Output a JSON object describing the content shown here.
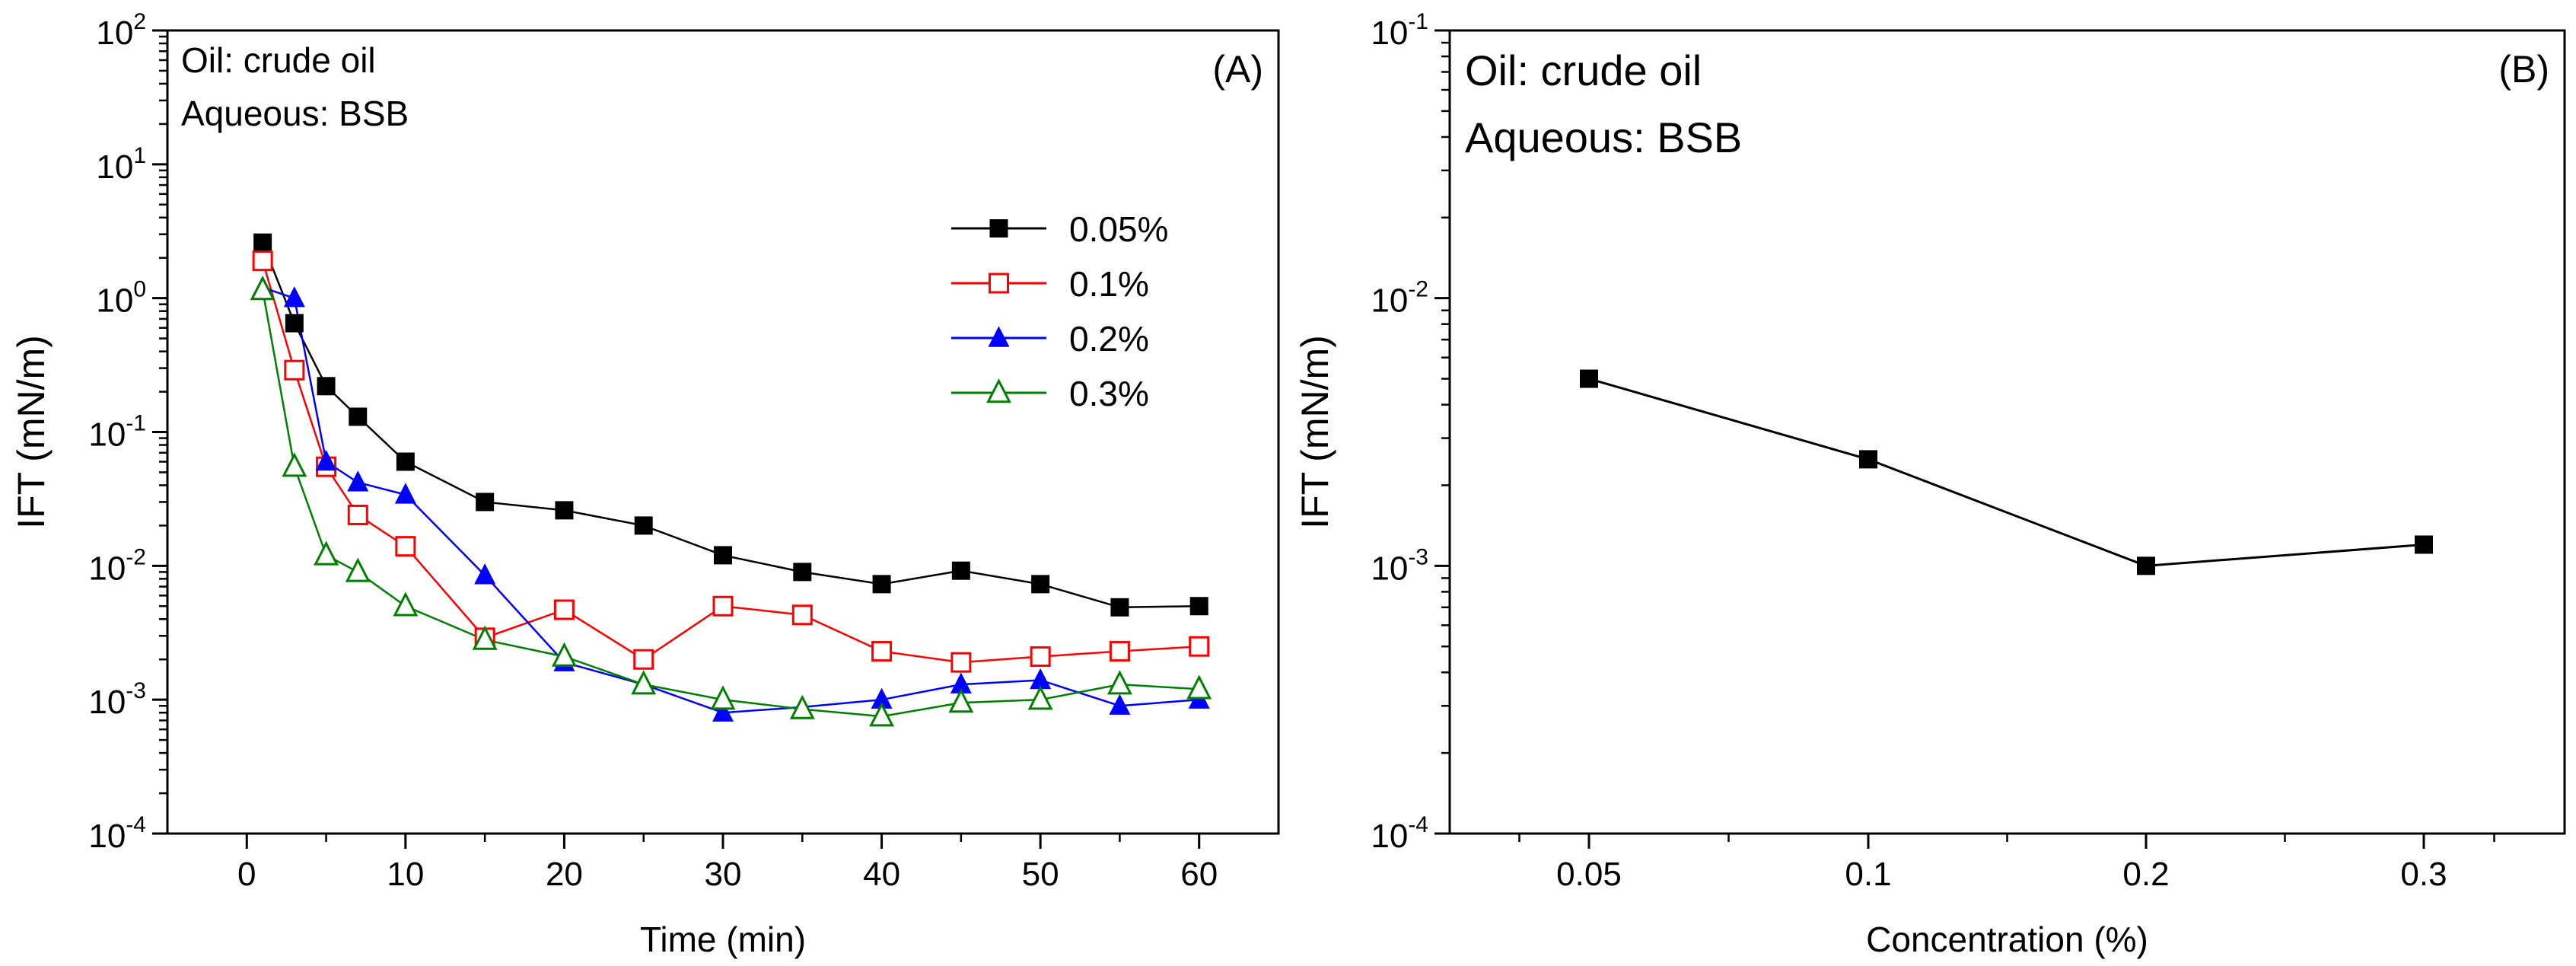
{
  "chart_data": [
    {
      "panel": "A",
      "type": "line",
      "panel_label": "(A)",
      "xlabel": "Time (min)",
      "ylabel": "IFT (mN/m)",
      "yscale": "log",
      "xlim": [
        -5,
        65
      ],
      "ylim": [
        0.0001,
        100
      ],
      "xticks": [
        0,
        10,
        20,
        30,
        40,
        50,
        60
      ],
      "yticks": [
        {
          "value": 0.0001,
          "exp": "-4"
        },
        {
          "value": 0.001,
          "exp": "-3"
        },
        {
          "value": 0.01,
          "exp": "-2"
        },
        {
          "value": 0.1,
          "exp": "-1"
        },
        {
          "value": 1,
          "exp": "0"
        },
        {
          "value": 10,
          "exp": "1"
        },
        {
          "value": 100,
          "exp": "2"
        }
      ],
      "tick_base": "10",
      "annotation": [
        "Oil: crude oil",
        "Aqueous: BSB"
      ],
      "legend_position": "upper-right",
      "x": [
        1,
        3,
        5,
        7,
        10,
        15,
        20,
        25,
        30,
        35,
        40,
        45,
        50,
        55,
        60
      ],
      "series": [
        {
          "name": "0.05%",
          "color": "#000000",
          "marker": "square-filled",
          "values": [
            2.6,
            0.65,
            0.22,
            0.13,
            0.06,
            0.03,
            0.026,
            0.02,
            0.012,
            0.009,
            0.0073,
            0.0092,
            0.0073,
            0.0049,
            0.005
          ]
        },
        {
          "name": "0.1%",
          "color": "#ff0000",
          "marker": "square-open",
          "values": [
            1.9,
            0.29,
            0.055,
            0.024,
            0.014,
            0.0029,
            0.0047,
            0.002,
            0.005,
            0.0043,
            0.0023,
            0.0019,
            0.0021,
            0.0023,
            0.0025
          ]
        },
        {
          "name": "0.2%",
          "color": "#0000ff",
          "marker": "triangle-filled",
          "values": [
            1.2,
            1.0,
            0.06,
            0.042,
            0.034,
            0.0085,
            0.0019,
            0.0013,
            0.0008,
            0.00088,
            0.001,
            0.0013,
            0.0014,
            0.0009,
            0.001
          ]
        },
        {
          "name": "0.3%",
          "color": "#008000",
          "marker": "triangle-open",
          "values": [
            1.15,
            0.055,
            0.012,
            0.009,
            0.005,
            0.0028,
            0.0021,
            0.0013,
            0.001,
            0.00085,
            0.00075,
            0.00095,
            0.001,
            0.0013,
            0.0012
          ]
        }
      ]
    },
    {
      "panel": "B",
      "type": "line",
      "panel_label": "(B)",
      "xlabel": "Concentration (%)",
      "ylabel": "IFT (mN/m)",
      "yscale": "log",
      "ylim": [
        0.0001,
        0.1
      ],
      "categories": [
        "0.05",
        "0.1",
        "0.2",
        "0.3"
      ],
      "yticks": [
        {
          "value": 0.0001,
          "exp": "-4"
        },
        {
          "value": 0.001,
          "exp": "-3"
        },
        {
          "value": 0.01,
          "exp": "-2"
        },
        {
          "value": 0.1,
          "exp": "-1"
        }
      ],
      "tick_base": "10",
      "annotation": [
        "Oil: crude oil",
        "Aqueous: BSB"
      ],
      "series": [
        {
          "name": "IFT",
          "color": "#000000",
          "marker": "square-filled",
          "values": [
            0.005,
            0.0025,
            0.001,
            0.0012
          ]
        }
      ]
    }
  ]
}
